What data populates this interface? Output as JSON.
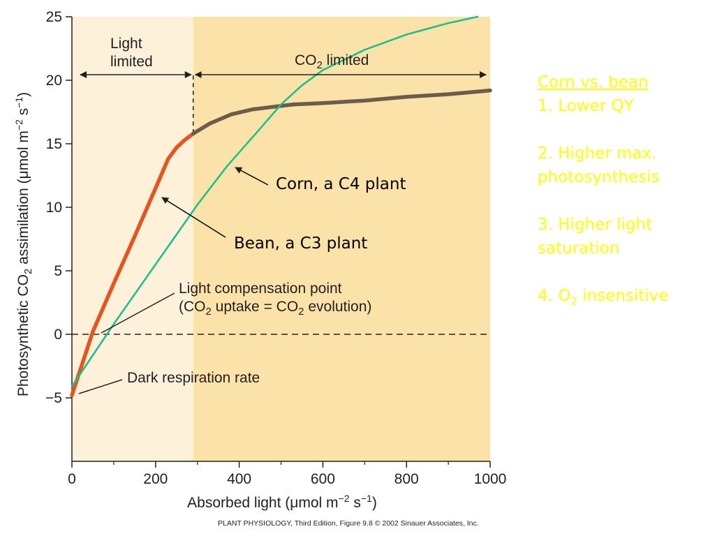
{
  "chart_data": {
    "type": "line",
    "xlabel_parts": [
      "Absorbed light (μmol m",
      "−2",
      " s",
      "−1",
      ")"
    ],
    "ylabel_parts": [
      "Photosynthetic CO",
      "2",
      " assimilation (μmol m",
      "−2",
      " s",
      "−1",
      ")"
    ],
    "xlim": [
      0,
      1000
    ],
    "ylim": [
      -10,
      25
    ],
    "x_ticks": [
      0,
      200,
      400,
      600,
      800,
      1000
    ],
    "x_tick_labels": [
      "0",
      "200",
      "400",
      "600",
      "800",
      "1000"
    ],
    "y_ticks": [
      -5,
      0,
      5,
      10,
      15,
      20,
      25
    ],
    "y_tick_labels": [
      "−5",
      "0",
      "5",
      "10",
      "15",
      "20",
      "25"
    ],
    "regions": [
      {
        "label_lines": [
          "Light",
          "limited"
        ],
        "x_range": [
          0,
          290
        ],
        "color": "#fdf2d9"
      },
      {
        "label_parts": [
          "CO",
          "2",
          " limited"
        ],
        "x_range": [
          290,
          1000
        ],
        "color": "#fbe2a8"
      }
    ],
    "series": [
      {
        "color": "#e8531f",
        "x": [
          0,
          50,
          100,
          150,
          200,
          230,
          250,
          270,
          290
        ],
        "y": [
          -4.8,
          0.2,
          4.0,
          7.7,
          11.5,
          13.8,
          14.7,
          15.3,
          15.8
        ]
      },
      {
        "color": "#6a5d4d",
        "x": [
          290,
          330,
          380,
          430,
          480,
          530,
          600,
          700,
          800,
          900,
          1000
        ],
        "y": [
          15.8,
          16.6,
          17.3,
          17.7,
          17.9,
          18.1,
          18.2,
          18.4,
          18.7,
          18.9,
          19.2
        ]
      },
      {
        "color": "#1dbf8e",
        "x": [
          0,
          100,
          200,
          300,
          370,
          450,
          500,
          550,
          600,
          700,
          800,
          900,
          970
        ],
        "y": [
          -4.1,
          0.8,
          5.5,
          10.2,
          13.2,
          16.2,
          18.1,
          19.6,
          20.8,
          22.4,
          23.6,
          24.5,
          25.0
        ]
      }
    ],
    "annotations": {
      "light_compensation": {
        "line1": "Light compensation point",
        "line2_parts": [
          "(CO",
          "2",
          " uptake = CO",
          "2",
          " evolution)"
        ]
      },
      "dark_respiration": "Dark respiration rate",
      "corn_label": "Corn, a C4 plant",
      "bean_label": "Bean, a C3 plant"
    },
    "grid": false,
    "dashed_reference_line_y": 0,
    "divider_x": 290
  },
  "credit": {
    "book": "PLANT PHYSIOLOGY",
    "rest": ", Third Edition, Figure 9.8  © 2002 Sinauer Associates, Inc."
  },
  "notes": {
    "heading": "Corn vs. bean",
    "item1": "1.  Lower QY",
    "item2_line1": "2. Higher max.",
    "item2_line2": "photosynthesis",
    "item3_line1": "3. Higher light",
    "item3_line2": "saturation",
    "item4_pre": "4. O",
    "item4_sub": "2",
    "item4_post": " insensitive"
  },
  "colors": {
    "notes_text": "#ffff00",
    "axis": "#231f20"
  }
}
